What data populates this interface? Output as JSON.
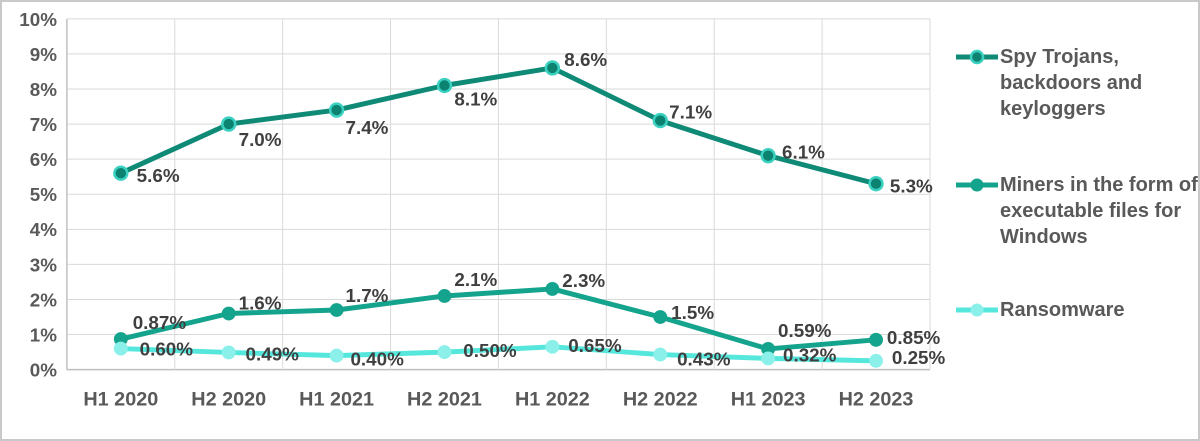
{
  "chart_data": {
    "type": "line",
    "title": "",
    "xlabel": "",
    "ylabel": "",
    "categories": [
      "H1 2020",
      "H2 2020",
      "H1 2021",
      "H2 2021",
      "H1 2022",
      "H2 2022",
      "H1 2023",
      "H2 2023"
    ],
    "y_ticks": [
      "0%",
      "1%",
      "2%",
      "3%",
      "4%",
      "5%",
      "6%",
      "7%",
      "8%",
      "9%",
      "10%"
    ],
    "ylim": [
      0,
      10
    ],
    "grid": true,
    "legend_position": "right",
    "series": [
      {
        "name": "Spy Trojans, backdoors and keyloggers",
        "values": [
          5.6,
          7.0,
          7.4,
          8.1,
          8.6,
          7.1,
          6.1,
          5.3
        ],
        "data_labels": [
          "5.6%",
          "7.0%",
          "7.4%",
          "8.1%",
          "8.6%",
          "7.1%",
          "6.1%",
          "5.3%"
        ],
        "color": "#0E8A76",
        "marker": {
          "fill": "#0C8270",
          "stroke": "#3BD1C1",
          "stroke_width": 2.5,
          "r": 6.5
        },
        "label_offsets": [
          [
            16,
            9
          ],
          [
            10,
            22
          ],
          [
            9,
            24
          ],
          [
            10,
            20
          ],
          [
            12,
            -2
          ],
          [
            9,
            -2
          ],
          [
            14,
            3
          ],
          [
            14,
            9
          ]
        ]
      },
      {
        "name": "Miners in the form of executable files for Windows",
        "values": [
          0.87,
          1.6,
          1.7,
          2.1,
          2.3,
          1.5,
          0.59,
          0.85
        ],
        "data_labels": [
          "0.87%",
          "1.6%",
          "1.7%",
          "2.1%",
          "2.3%",
          "1.5%",
          "0.59%",
          "0.85%"
        ],
        "color": "#14A38C",
        "marker": {
          "fill": "#14A38C",
          "stroke": "#14A38C",
          "stroke_width": 1,
          "r": 6.5
        },
        "label_offsets": [
          [
            12,
            -10
          ],
          [
            10,
            -4
          ],
          [
            9,
            -8
          ],
          [
            10,
            -10
          ],
          [
            10,
            -2
          ],
          [
            11,
            2
          ],
          [
            10,
            -12
          ],
          [
            11,
            4
          ]
        ]
      },
      {
        "name": "Ransomware",
        "values": [
          0.6,
          0.49,
          0.4,
          0.5,
          0.65,
          0.43,
          0.32,
          0.25
        ],
        "data_labels": [
          "0.60%",
          "0.49%",
          "0.40%",
          "0.50%",
          "0.65%",
          "0.43%",
          "0.32%",
          "0.25%"
        ],
        "color": "#55E6DC",
        "marker": {
          "fill": "#8AF0E9",
          "stroke": "#8AF0E9",
          "stroke_width": 1,
          "r": 6.5
        },
        "label_offsets": [
          [
            19,
            7
          ],
          [
            17,
            8
          ],
          [
            14,
            10
          ],
          [
            19,
            5
          ],
          [
            16,
            5
          ],
          [
            17,
            11
          ],
          [
            15,
            3
          ],
          [
            16,
            3
          ]
        ]
      }
    ],
    "colors": {
      "grid": "#D9D9D9",
      "axis": "#BFBFBF",
      "tick_text": "#595959",
      "data_label_text": "#3F3F3F",
      "frame_border": "#C9C9C9"
    }
  }
}
